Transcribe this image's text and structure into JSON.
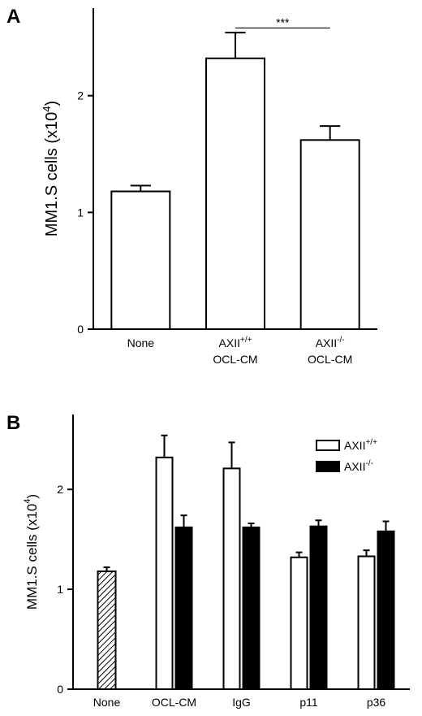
{
  "chart_data": [
    {
      "type": "bar",
      "panel": "A",
      "y_label": {
        "text": "MM1.S cells (x10",
        "sup": "4",
        "tail": ")"
      },
      "categories": [
        {
          "text": "None"
        },
        {
          "text": "AXII",
          "sup": "+/+",
          "line2": "OCL-CM"
        },
        {
          "text": "AXII",
          "sup": "-/-",
          "line2": "OCL-CM"
        }
      ],
      "values": [
        1.18,
        2.32,
        1.62
      ],
      "errors": [
        0.05,
        0.22,
        0.12
      ],
      "color": "#ffffff",
      "ylim": [
        0,
        2.75
      ],
      "yticks": [
        0,
        1,
        2
      ],
      "annotations": [
        {
          "text": "***",
          "from": 1,
          "to": 2,
          "y": 2.58
        }
      ]
    },
    {
      "type": "grouped_bar",
      "panel": "B",
      "y_label": {
        "text": "MM1.S cells (x10",
        "sup": "4",
        "tail": ")"
      },
      "categories": [
        "None",
        "OCL-CM",
        "IgG",
        "p11",
        "p36"
      ],
      "control": {
        "values": [
          1.18,
          null,
          null,
          null,
          null
        ],
        "errors": [
          0.04,
          null,
          null,
          null,
          null
        ],
        "pattern": "hatch"
      },
      "series": [
        {
          "name": "AXII",
          "name_sup": "+/+",
          "color": "#ffffff",
          "values": [
            null,
            2.32,
            2.21,
            1.32,
            1.33
          ],
          "errors": [
            null,
            0.22,
            0.26,
            0.05,
            0.06
          ]
        },
        {
          "name": "AXII",
          "name_sup": "-/-",
          "color": "#000000",
          "values": [
            null,
            1.62,
            1.62,
            1.63,
            1.58
          ],
          "errors": [
            null,
            0.12,
            0.04,
            0.06,
            0.1
          ]
        }
      ],
      "ylim": [
        0,
        2.75
      ],
      "yticks": [
        0,
        1,
        2
      ],
      "legend": "upper right"
    }
  ]
}
